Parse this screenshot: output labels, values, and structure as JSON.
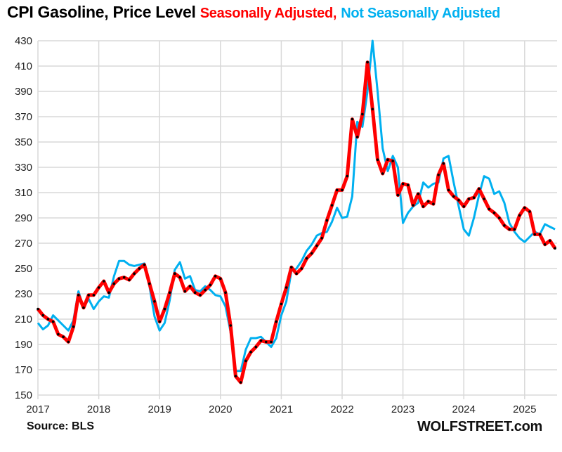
{
  "chart_data": {
    "type": "line",
    "title": "CPI Gasoline, Price Level",
    "title_series_labels": [
      "Seasonally Adjusted,",
      "Not Seasonally Adjusted"
    ],
    "xlabel": "",
    "ylabel": "",
    "ylim": [
      150,
      430
    ],
    "yticks": [
      150,
      170,
      190,
      210,
      230,
      250,
      270,
      290,
      310,
      330,
      350,
      370,
      390,
      410,
      430
    ],
    "xticks": [
      "2017",
      "2018",
      "2019",
      "2020",
      "2021",
      "2022",
      "2023",
      "2024",
      "2025"
    ],
    "x_start": "2017-01",
    "x_frequency": "monthly",
    "grid": true,
    "colors": {
      "sa": "#ff0000",
      "nsa": "#00b0f0",
      "markers": "#000000"
    },
    "series": [
      {
        "name": "Seasonally Adjusted",
        "values": [
          218,
          213,
          210,
          208,
          198,
          196,
          192,
          204,
          229,
          219,
          229,
          229,
          235,
          240,
          231,
          238,
          242,
          243,
          241,
          246,
          250,
          253,
          238,
          224,
          208,
          218,
          231,
          246,
          243,
          232,
          236,
          231,
          229,
          233,
          237,
          244,
          242,
          231,
          205,
          165,
          160,
          177,
          184,
          188,
          193,
          192,
          192,
          208,
          222,
          235,
          251,
          246,
          250,
          258,
          262,
          268,
          274,
          288,
          300,
          312,
          312,
          323,
          368,
          354,
          372,
          413,
          376,
          336,
          325,
          336,
          335,
          308,
          317,
          316,
          300,
          309,
          299,
          303,
          301,
          324,
          333,
          312,
          307,
          304,
          299,
          305,
          306,
          313,
          305,
          297,
          294,
          290,
          284,
          281,
          281,
          292,
          298,
          295,
          277,
          277,
          269,
          272,
          266
        ]
      },
      {
        "name": "Not Seasonally Adjusted",
        "values": [
          207,
          202,
          205,
          213,
          209,
          205,
          201,
          209,
          232,
          219,
          226,
          218,
          224,
          228,
          227,
          244,
          256,
          256,
          253,
          252,
          253,
          254,
          236,
          212,
          201,
          207,
          225,
          249,
          255,
          242,
          244,
          233,
          232,
          236,
          233,
          229,
          228,
          220,
          200,
          169,
          169,
          186,
          195,
          195,
          196,
          192,
          188,
          195,
          213,
          224,
          248,
          250,
          256,
          264,
          269,
          276,
          278,
          279,
          287,
          298,
          290,
          291,
          307,
          366,
          362,
          390,
          430,
          390,
          345,
          327,
          339,
          330,
          286,
          294,
          299,
          302,
          318,
          314,
          317,
          318,
          337,
          339,
          318,
          299,
          281,
          276,
          290,
          308,
          323,
          321,
          309,
          311,
          302,
          286,
          279,
          274,
          271,
          275,
          279,
          277,
          285,
          283,
          281
        ]
      }
    ],
    "source": "Source: BLS",
    "brand": "WOLFSTREET.com"
  }
}
